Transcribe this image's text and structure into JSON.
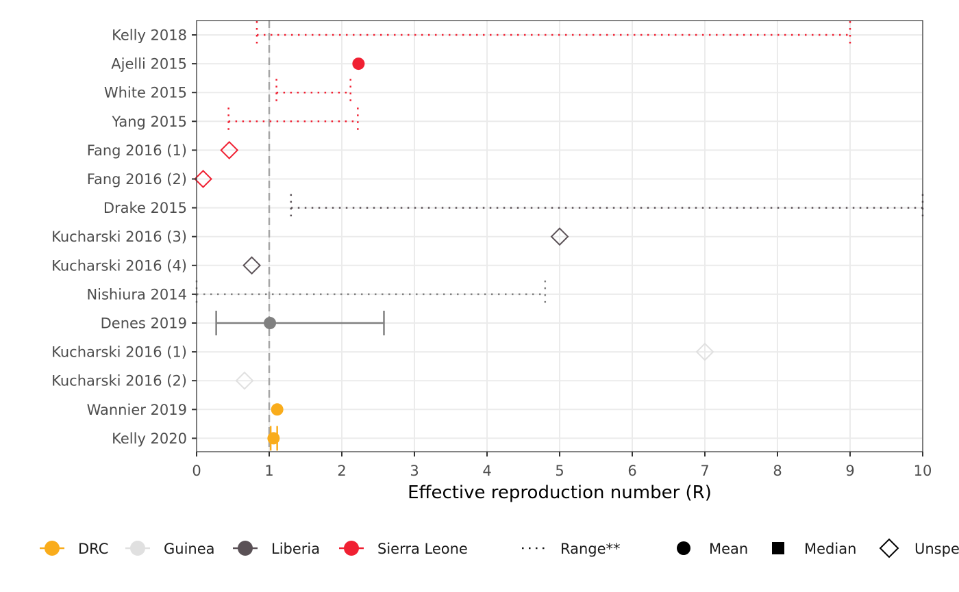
{
  "chart_data": {
    "type": "forest",
    "xlabel": "Effective reproduction number (R)",
    "xlim": [
      0,
      10
    ],
    "x_ticks": [
      "0",
      "1",
      "2",
      "3",
      "4",
      "5",
      "6",
      "7",
      "8",
      "9",
      "10"
    ],
    "reference_line": 1,
    "grid": true,
    "legend_position": "bottom",
    "colors": {
      "DRC": "#f9ac1b",
      "Guinea": "#e0e0e0",
      "Liberia": "#5a5156",
      "Sierra Leone": "#f02032",
      "grey": "#808080"
    },
    "studies": [
      {
        "label": "Kelly 2018",
        "country": "Sierra Leone",
        "type": "range",
        "low": 0.83,
        "high": 9.0
      },
      {
        "label": "Ajelli 2015",
        "country": "Sierra Leone",
        "type": "mean",
        "value": 2.23
      },
      {
        "label": "White 2015",
        "country": "Sierra Leone",
        "type": "range",
        "low": 1.1,
        "high": 2.12
      },
      {
        "label": "Yang 2015",
        "country": "Sierra Leone",
        "type": "range",
        "low": 0.44,
        "high": 2.22
      },
      {
        "label": "Fang 2016 (1)",
        "country": "Sierra Leone",
        "type": "unspecified",
        "value": 0.45
      },
      {
        "label": "Fang 2016 (2)",
        "country": "Sierra Leone",
        "type": "unspecified",
        "value": 0.09
      },
      {
        "label": "Drake 2015",
        "country": "Liberia",
        "type": "range",
        "low": 1.3,
        "high": 10
      },
      {
        "label": "Kucharski 2016 (3)",
        "country": "Liberia",
        "type": "unspecified",
        "value": 5.0
      },
      {
        "label": "Kucharski 2016 (4)",
        "country": "Liberia",
        "type": "unspecified",
        "value": 0.76
      },
      {
        "label": "Nishiura 2014",
        "country": "grey",
        "type": "range",
        "low": 0,
        "high": 4.8
      },
      {
        "label": "Denes 2019",
        "country": "grey",
        "type": "mean_ci",
        "value": 1.01,
        "low": 0.27,
        "high": 2.58
      },
      {
        "label": "Kucharski 2016 (1)",
        "country": "Guinea",
        "type": "unspecified",
        "value": 7.0
      },
      {
        "label": "Kucharski 2016 (2)",
        "country": "Guinea",
        "type": "unspecified",
        "value": 0.66
      },
      {
        "label": "Wannier 2019",
        "country": "DRC",
        "type": "mean",
        "value": 1.11
      },
      {
        "label": "Kelly 2020",
        "country": "DRC",
        "type": "mean_ci",
        "value": 1.06,
        "low": 1.02,
        "high": 1.11
      }
    ]
  },
  "legend": {
    "countries": [
      {
        "label": "DRC",
        "color": "#f9ac1b"
      },
      {
        "label": "Guinea",
        "color": "#e0e0e0"
      },
      {
        "label": "Liberia",
        "color": "#5a5156"
      },
      {
        "label": "Sierra Leone",
        "color": "#f02032"
      }
    ],
    "range_label": "Range**",
    "shapes": [
      {
        "label": "Mean",
        "shape": "circle"
      },
      {
        "label": "Median",
        "shape": "square"
      },
      {
        "label": "Unspe",
        "shape": "diamond"
      }
    ]
  }
}
